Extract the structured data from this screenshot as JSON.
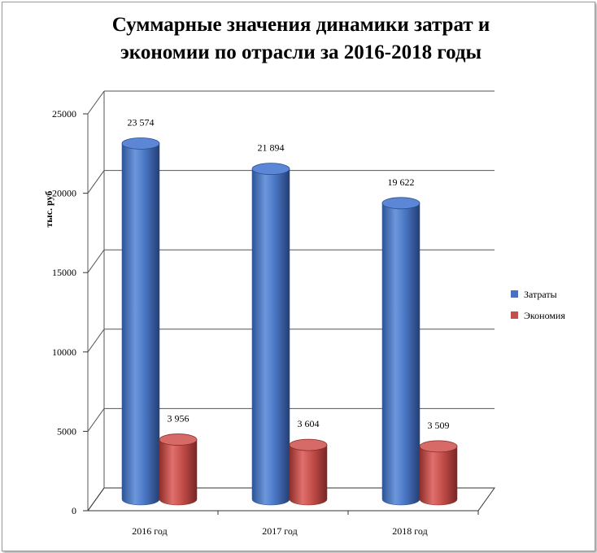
{
  "chart_data": {
    "type": "bar",
    "title_lines": [
      "Суммарные значения динамики затрат и",
      "экономии  по отрасли за 2016-2018 годы"
    ],
    "ylabel": "тыс. руб",
    "ylim": [
      0,
      25000
    ],
    "yticks": [
      0,
      5000,
      10000,
      15000,
      20000,
      25000
    ],
    "categories": [
      "2016 год",
      "2017 год",
      "2018 год"
    ],
    "series": [
      {
        "name": "Затраты",
        "values": [
          23574,
          21894,
          19622
        ],
        "labels": [
          "23 574",
          "21 894",
          "19 622"
        ],
        "color": "#4472c4"
      },
      {
        "name": "Экономия",
        "values": [
          3956,
          3604,
          3509
        ],
        "labels": [
          "3 956",
          "3 604",
          "3 509"
        ],
        "color": "#c0504d"
      }
    ],
    "grid": true,
    "legend": "right",
    "style": "3d-cylinder"
  }
}
